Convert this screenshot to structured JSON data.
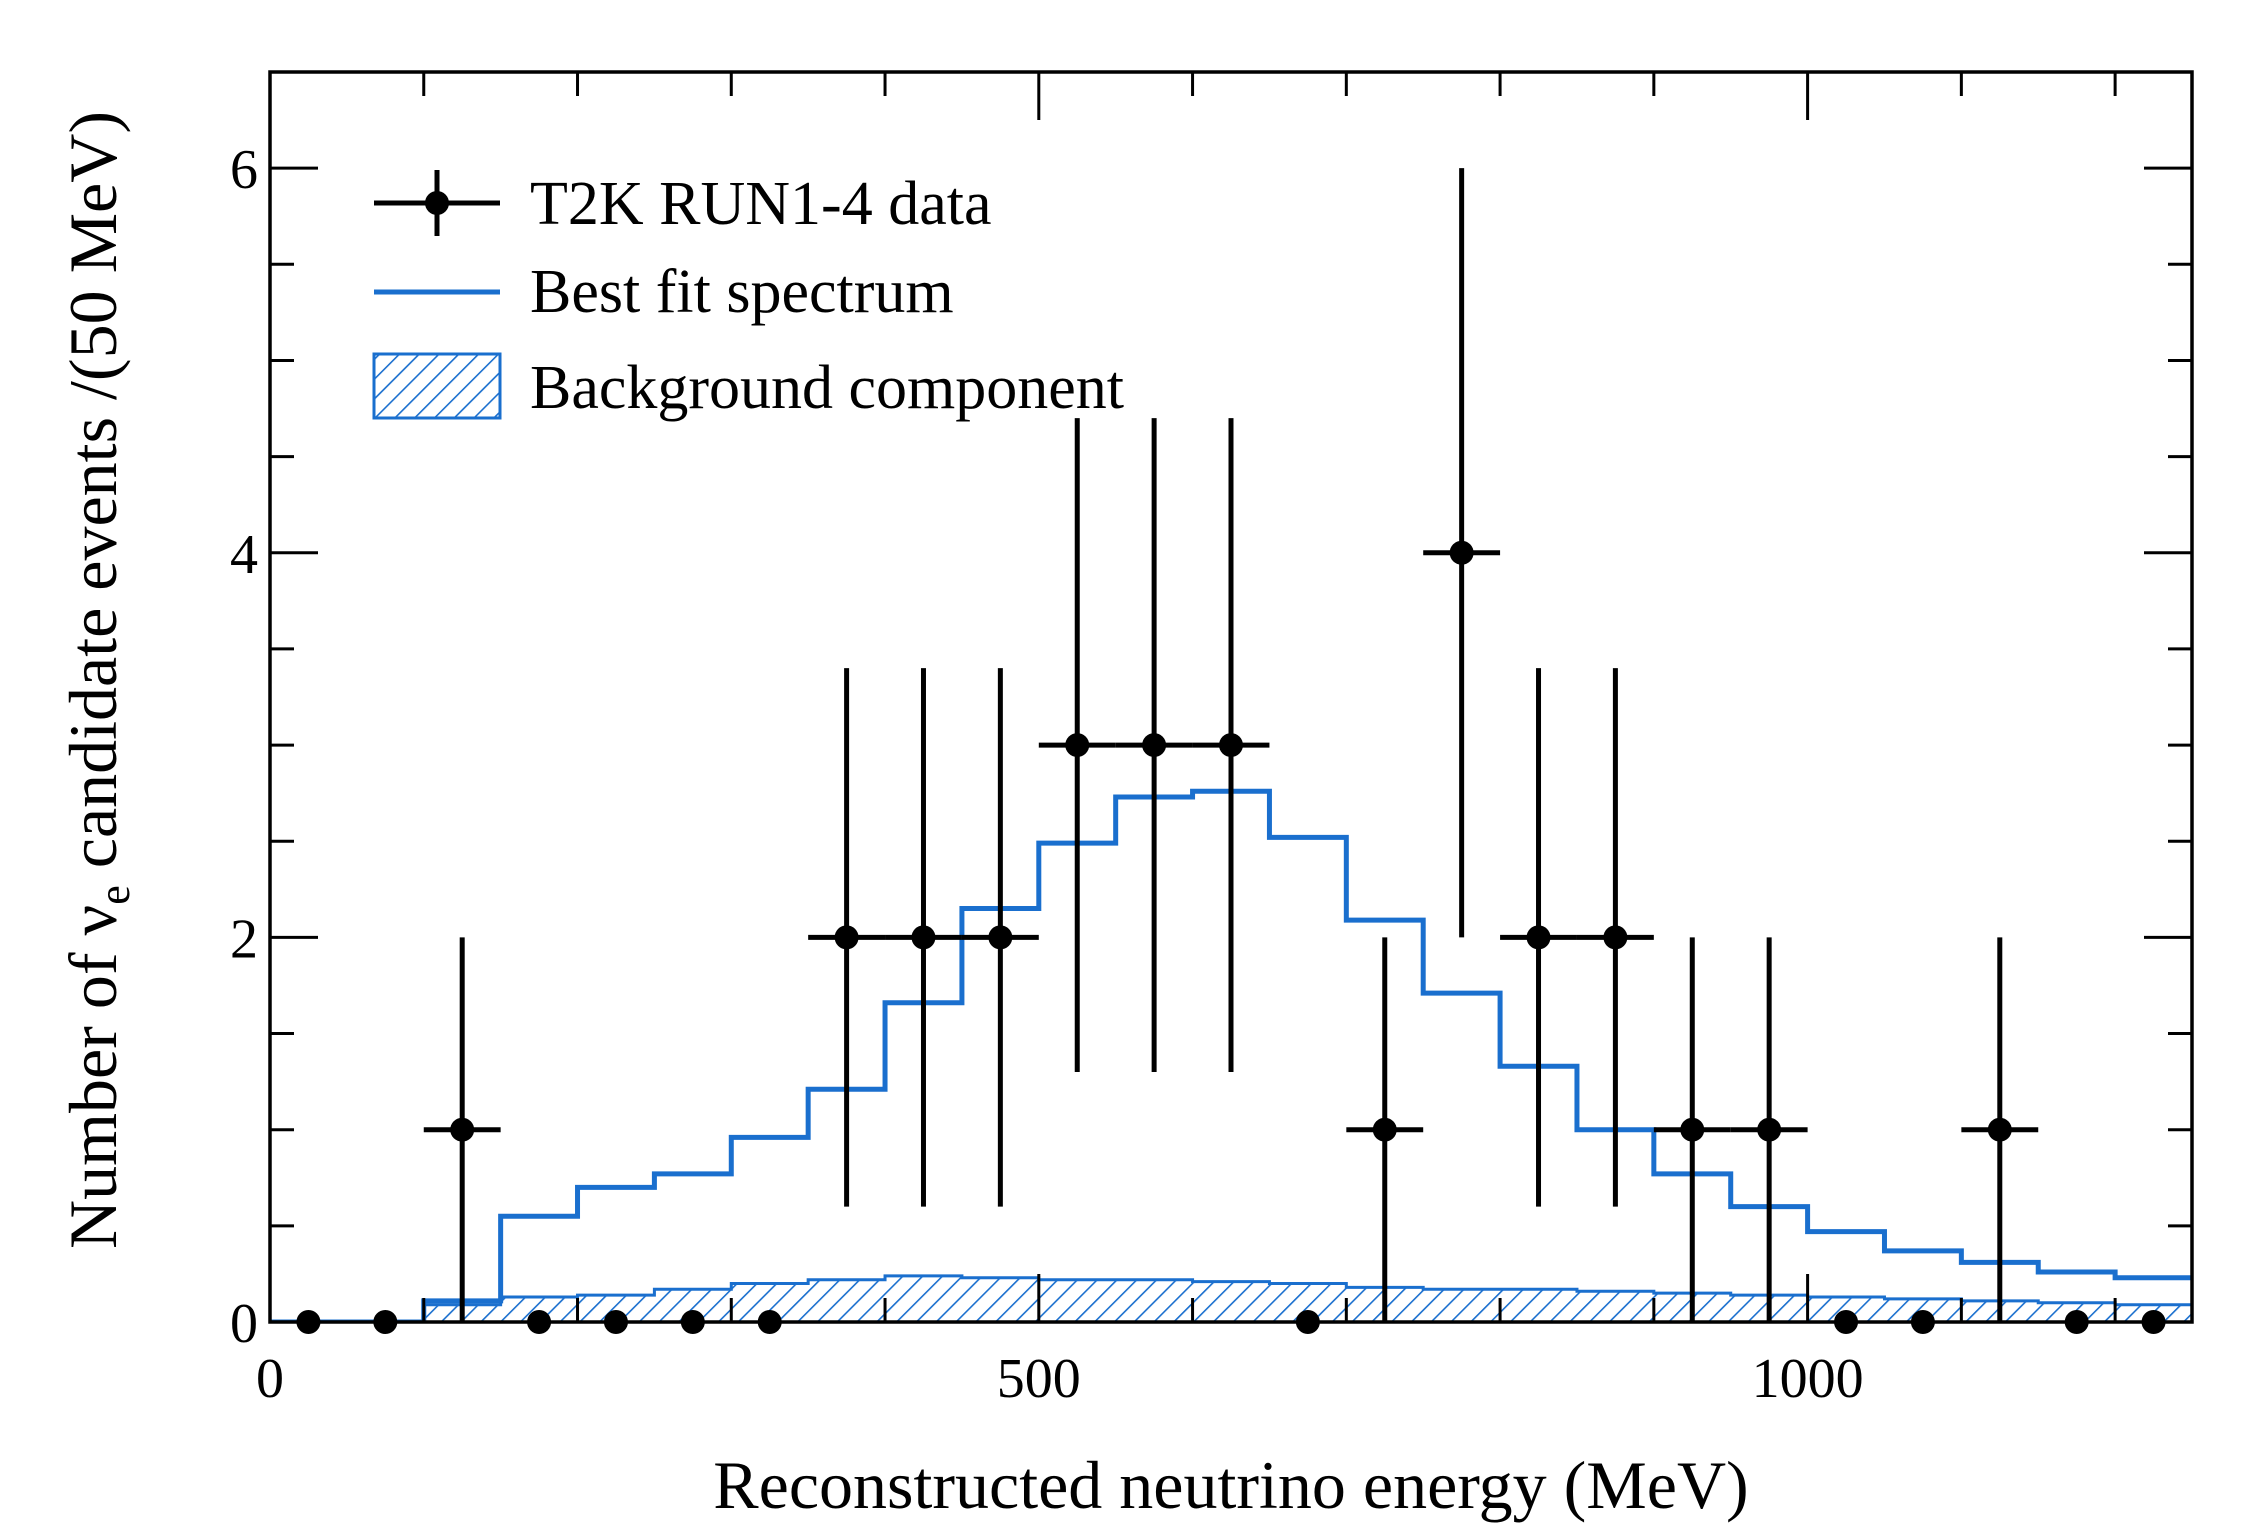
{
  "chart_data": {
    "type": "line",
    "title": "",
    "xlabel": "Reconstructed neutrino energy (MeV)",
    "ylabel_prefix": "Number of ",
    "ylabel_symbol": "ν",
    "ylabel_subscript": "e",
    "ylabel_suffix": " candidate events /(50 MeV)",
    "xlim": [
      0,
      1250
    ],
    "ylim": [
      0,
      6.5
    ],
    "x_ticks": [
      0,
      500,
      1000
    ],
    "x_tick_labels": [
      "0",
      "500",
      "1000"
    ],
    "y_ticks": [
      0,
      2,
      4,
      6
    ],
    "y_tick_labels": [
      "0",
      "2",
      "4",
      "6"
    ],
    "bin_width": 50,
    "grid": false,
    "legend_position": "top-left",
    "series": [
      {
        "name": "T2K RUN1-4 data",
        "kind": "points_with_errors",
        "color": "#000000",
        "x": [
          25,
          75,
          125,
          175,
          225,
          275,
          325,
          375,
          425,
          475,
          525,
          575,
          625,
          675,
          725,
          775,
          825,
          875,
          925,
          975,
          1025,
          1075,
          1125,
          1175,
          1225
        ],
        "y": [
          0,
          0,
          1,
          0,
          0,
          0,
          0,
          2,
          2,
          2,
          3,
          3,
          3,
          0,
          1,
          4,
          2,
          2,
          1,
          1,
          0,
          0,
          1,
          0,
          0
        ],
        "err_low": [
          0,
          0,
          1,
          0,
          0,
          0,
          0,
          1.4,
          1.4,
          1.4,
          1.7,
          1.7,
          1.7,
          0,
          1,
          2,
          1.4,
          1.4,
          1,
          1,
          0,
          0,
          1,
          0,
          0
        ],
        "err_high": [
          0,
          0,
          1,
          0,
          0,
          0,
          0,
          1.4,
          1.4,
          1.4,
          1.7,
          1.7,
          1.7,
          0,
          1,
          2,
          1.4,
          1.4,
          1,
          1,
          0,
          0,
          1,
          0,
          0
        ]
      },
      {
        "name": "Best fit spectrum",
        "kind": "step",
        "color": "#1a6fce",
        "bin_edges": [
          0,
          50,
          100,
          150,
          200,
          250,
          300,
          350,
          400,
          450,
          500,
          550,
          600,
          650,
          700,
          750,
          800,
          850,
          900,
          950,
          1000,
          1050,
          1100,
          1150,
          1200,
          1250
        ],
        "values": [
          0,
          0,
          0.11,
          0.55,
          0.7,
          0.77,
          0.96,
          1.21,
          1.66,
          2.15,
          2.49,
          2.73,
          2.76,
          2.52,
          2.09,
          1.71,
          1.33,
          1.0,
          0.77,
          0.6,
          0.47,
          0.37,
          0.31,
          0.26,
          0.23
        ]
      },
      {
        "name": "Background component",
        "kind": "hatched_step",
        "color": "#1a6fce",
        "bin_edges": [
          0,
          50,
          100,
          150,
          200,
          250,
          300,
          350,
          400,
          450,
          500,
          550,
          600,
          650,
          700,
          750,
          800,
          850,
          900,
          950,
          1000,
          1050,
          1100,
          1150,
          1200,
          1250
        ],
        "values": [
          0,
          0,
          0.09,
          0.13,
          0.14,
          0.17,
          0.2,
          0.22,
          0.24,
          0.23,
          0.22,
          0.22,
          0.21,
          0.2,
          0.18,
          0.17,
          0.17,
          0.16,
          0.15,
          0.14,
          0.13,
          0.12,
          0.11,
          0.1,
          0.09
        ]
      }
    ]
  }
}
